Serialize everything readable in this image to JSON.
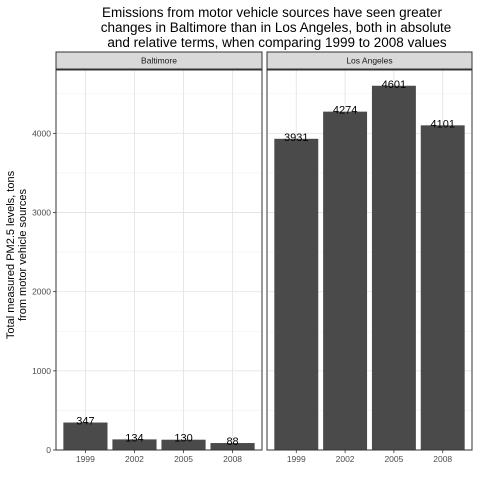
{
  "chart_data": {
    "type": "bar",
    "title_lines": [
      "Emissions from motor vehicle sources have seen greater",
      "changes in Baltimore than in Los Angeles, both in absolute",
      "and relative terms, when comparing 1999 to 2008 values"
    ],
    "ylabel_lines": [
      "Total measured PM2.5 levels, tons",
      "from motor vehicle sources"
    ],
    "xlabel": "",
    "ylim": [
      0,
      4800
    ],
    "yticks": [
      0,
      1000,
      2000,
      3000,
      4000
    ],
    "grid": true,
    "bar_color": "#4a4a4a",
    "panels": [
      {
        "name": "Baltimore",
        "categories": [
          "1999",
          "2002",
          "2005",
          "2008"
        ],
        "values": [
          347,
          134,
          130,
          88
        ],
        "labels": [
          "347",
          "134",
          "130",
          "88"
        ]
      },
      {
        "name": "Los Angeles",
        "categories": [
          "1999",
          "2002",
          "2005",
          "2008"
        ],
        "values": [
          3931,
          4274,
          4601,
          4101
        ],
        "labels": [
          "3931",
          "4274",
          "4601",
          "4101"
        ]
      }
    ]
  }
}
